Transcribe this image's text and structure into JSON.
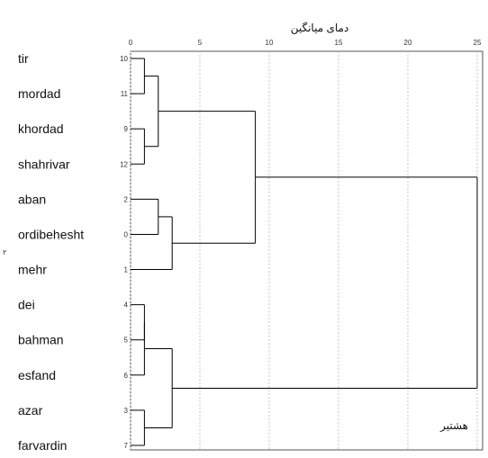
{
  "chart_data": {
    "type": "dendrogram",
    "title": "دمای میانگین",
    "corner_label": "هشتیر",
    "side_label": "۲",
    "x_ticks": [
      0,
      5,
      10,
      15,
      20,
      25
    ],
    "xlim": [
      0,
      25
    ],
    "grid": "vertical-dashed",
    "leaves": [
      {
        "label": "tir",
        "index": "10"
      },
      {
        "label": "mordad",
        "index": "11"
      },
      {
        "label": "khordad",
        "index": "9"
      },
      {
        "label": "shahrivar",
        "index": "12"
      },
      {
        "label": "aban",
        "index": "2"
      },
      {
        "label": "ordibehesht",
        "index": "0"
      },
      {
        "label": "mehr",
        "index": "1"
      },
      {
        "label": "dei",
        "index": "4"
      },
      {
        "label": "bahman",
        "index": "5"
      },
      {
        "label": "esfand",
        "index": "6"
      },
      {
        "label": "azar",
        "index": "3"
      },
      {
        "label": "farvardin",
        "index": "7"
      }
    ],
    "merges": [
      {
        "id": "A",
        "children": [
          0,
          1
        ],
        "height": 1
      },
      {
        "id": "B",
        "children": [
          2,
          3
        ],
        "height": 1
      },
      {
        "id": "C",
        "children": [
          "A",
          "B"
        ],
        "height": 2
      },
      {
        "id": "D",
        "children": [
          4,
          5
        ],
        "height": 2
      },
      {
        "id": "E",
        "children": [
          "D",
          6
        ],
        "height": 3
      },
      {
        "id": "F",
        "children": [
          "C",
          "E"
        ],
        "height": 9
      },
      {
        "id": "G",
        "children": [
          7,
          8
        ],
        "height": 1
      },
      {
        "id": "H",
        "children": [
          "G",
          9
        ],
        "height": 1
      },
      {
        "id": "I",
        "children": [
          10,
          11
        ],
        "height": 1
      },
      {
        "id": "J",
        "children": [
          "H",
          "I"
        ],
        "height": 3
      },
      {
        "id": "K",
        "children": [
          "F",
          "J"
        ],
        "height": 25
      }
    ]
  }
}
